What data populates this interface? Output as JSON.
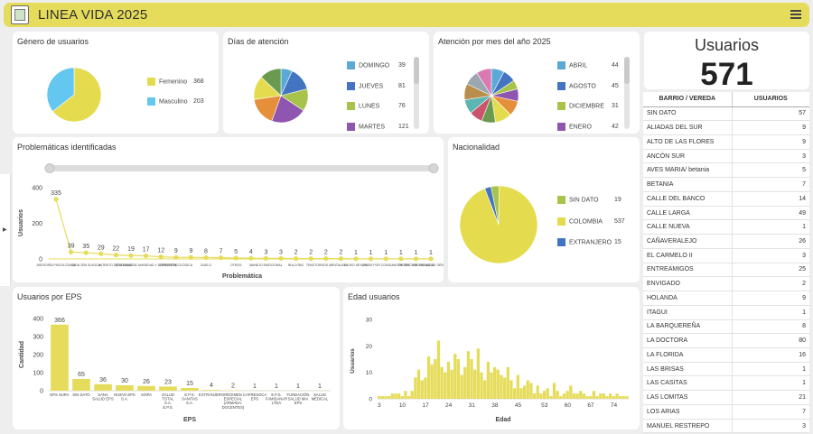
{
  "app": {
    "title": "LINEA VIDA 2025"
  },
  "colors": {
    "accent": "#e6dc5c",
    "bar": "#e6dc5c",
    "panel": "#ffffff"
  },
  "gender": {
    "title": "Género de usuarios",
    "items": [
      {
        "label": "Femenino",
        "value": 368,
        "color": "#e4dc4e"
      },
      {
        "label": "Masculino",
        "value": 203,
        "color": "#64c7ef"
      }
    ]
  },
  "days": {
    "title": "Días de atención",
    "legend": [
      {
        "label": "DOMINGO",
        "value": 39,
        "color": "#5aa9d6"
      },
      {
        "label": "JUEVES",
        "value": 81,
        "color": "#4274c2"
      },
      {
        "label": "LUNES",
        "value": 76,
        "color": "#a8c349"
      },
      {
        "label": "MARTES",
        "value": 121,
        "color": "#8e56b0"
      }
    ]
  },
  "months": {
    "title": "Atención por mes del año 2025",
    "legend": [
      {
        "label": "ABRIL",
        "value": 44,
        "color": "#5aa9d6"
      },
      {
        "label": "AGOSTO",
        "value": 45,
        "color": "#4274c2"
      },
      {
        "label": "DICIEMBRE",
        "value": 31,
        "color": "#a8c349"
      },
      {
        "label": "ENERO",
        "value": 42,
        "color": "#8e56b0"
      }
    ]
  },
  "problems": {
    "title": "Problemáticas identificadas",
    "xlabel": "Problemática",
    "ylabel": "Usuarios"
  },
  "nationality": {
    "title": "Nacionalidad",
    "items": [
      {
        "label": "SIN DATO",
        "value": 19,
        "color": "#a8c349"
      },
      {
        "label": "COLOMBIA",
        "value": 537,
        "color": "#e4dc4e"
      },
      {
        "label": "EXTRANJERO",
        "value": 15,
        "color": "#4274c2"
      }
    ]
  },
  "eps": {
    "title": "Usuarios por EPS",
    "xlabel": "EPS",
    "ylabel": "Cantidad"
  },
  "age": {
    "title": "Edad usuarios",
    "xlabel": "Edad",
    "ylabel": "Usuarios"
  },
  "stat": {
    "label": "Usuarios",
    "value": "571"
  },
  "table": {
    "headers": [
      "BARRIO / VEREDA",
      "USUARIOS"
    ],
    "rows": [
      [
        "SIN DATO",
        "57"
      ],
      [
        "ALIADAS DEL SUR",
        "9"
      ],
      [
        "ALTO DE LAS FLORES",
        "9"
      ],
      [
        "ANCÓN SUR",
        "3"
      ],
      [
        "AVES MARIA/ betania",
        "5"
      ],
      [
        "BETANIA",
        "7"
      ],
      [
        "CALLE DEL BANCO",
        "14"
      ],
      [
        "CALLE LARGA",
        "49"
      ],
      [
        "CALLE NUEVA",
        "1"
      ],
      [
        "CAÑAVERALEJO",
        "26"
      ],
      [
        "EL CARMELO II",
        "3"
      ],
      [
        "ENTREAMIGOS",
        "25"
      ],
      [
        "ENVIGADO",
        "2"
      ],
      [
        "HOLANDA",
        "9"
      ],
      [
        "ITAGUI",
        "1"
      ],
      [
        "LA BARQUEREÑA",
        "8"
      ],
      [
        "LA DOCTORA",
        "80"
      ],
      [
        "LA FLORIDA",
        "16"
      ],
      [
        "LAS BRISAS",
        "1"
      ],
      [
        "LAS CASITAS",
        "1"
      ],
      [
        "LAS LOMITAS",
        "21"
      ],
      [
        "LOS ARIAS",
        "7"
      ],
      [
        "MANUEL RESTREPO",
        "3"
      ]
    ]
  },
  "chart_data": [
    {
      "type": "pie",
      "title": "Género de usuarios",
      "categories": [
        "Femenino",
        "Masculino"
      ],
      "values": [
        368,
        203
      ]
    },
    {
      "type": "pie",
      "title": "Días de atención",
      "categories": [
        "DOMINGO",
        "JUEVES",
        "LUNES",
        "MARTES",
        "",
        "",
        ""
      ],
      "values": [
        39,
        81,
        76,
        121,
        98,
        82,
        74
      ],
      "colors": [
        "#5aa9d6",
        "#4274c2",
        "#a8c349",
        "#8e56b0",
        "#e58f3a",
        "#e4dc4e",
        "#6a9a4f"
      ]
    },
    {
      "type": "pie",
      "title": "Atención por mes del año 2025",
      "categories": [
        "ABRIL",
        "AGOSTO",
        "DICIEMBRE",
        "ENERO",
        "",
        "",
        "",
        "",
        "",
        "",
        "",
        ""
      ],
      "values": [
        44,
        45,
        31,
        42,
        52,
        58,
        47,
        46,
        49,
        55,
        50,
        52
      ],
      "colors": [
        "#5aa9d6",
        "#4274c2",
        "#a8c349",
        "#8e56b0",
        "#e58f3a",
        "#e4dc4e",
        "#6a9a4f",
        "#c9546b",
        "#5bb5b0",
        "#b98e4a",
        "#9aa6b2",
        "#d97bb2"
      ]
    },
    {
      "type": "line",
      "title": "Problemáticas identificadas",
      "xlabel": "Problemática",
      "ylabel": "Usuarios",
      "ylim": [
        0,
        400
      ],
      "yticks": [
        0,
        200,
        400
      ],
      "categories": [
        "ASESORÍA PSICOLÓGICA",
        "IDEACIÓN SUICIDA",
        "INTENTO DE SUICIDIO",
        "SÍNTOMAS DE ANSIEDAD Y DEPRESIÓN",
        "CRISIS PSICOLÓGICA",
        "DUELO",
        "OTROS",
        "MANEJO EMOCIONAL",
        "BULLYING",
        "TRASTORNOS MENTALES",
        "ABUSO SEXUAL",
        "CRISIS POR CONSUMO DE SPA",
        "PROTECTOR TORNADA",
        "VIOLENCIAS DE GÉNERO",
        "",
        "",
        "",
        "",
        "",
        ""
      ],
      "values": [
        335,
        39,
        35,
        29,
        22,
        19,
        17,
        12,
        9,
        9,
        8,
        7,
        5,
        4,
        3,
        3,
        2,
        2,
        2,
        2
      ],
      "values2": [
        1,
        1,
        1,
        1,
        1,
        1
      ]
    },
    {
      "type": "pie",
      "title": "Nacionalidad",
      "categories": [
        "SIN DATO",
        "COLOMBIA",
        "EXTRANJERO"
      ],
      "values": [
        19,
        537,
        15
      ]
    },
    {
      "type": "bar",
      "title": "Usuarios por EPS",
      "xlabel": "EPS",
      "ylabel": "Cantidad",
      "ylim": [
        0,
        400
      ],
      "yticks": [
        0,
        100,
        200,
        300,
        400
      ],
      "categories": [
        "EPS SURA",
        "SIN DATO",
        "SANA SALUD EPS",
        "NUEVA EPS S.A.",
        "SISPA",
        "SALUD TOTAL S.A. E.P.S.",
        "E.P.S. SANITAS S.A.",
        "EXTRANJERO",
        "RÉGIMEN ESPECIAL (ARMADA, DOCENTES)",
        "CAPRESOCA EPS",
        "E.P.S. FAMISANAR LTDA",
        "FUNDACIÓN SALUD MIA EPS",
        "SALUD MÉDICAL"
      ],
      "values": [
        366,
        65,
        36,
        30,
        26,
        23,
        15,
        4,
        2,
        1,
        1,
        1,
        1
      ]
    },
    {
      "type": "bar",
      "title": "Edad usuarios",
      "xlabel": "Edad",
      "ylabel": "Usuarios",
      "ylim": [
        0,
        30
      ],
      "yticks": [
        0,
        10,
        20,
        30
      ],
      "xticks": [
        3,
        10,
        17,
        24,
        31,
        38,
        45,
        53,
        60,
        67,
        74
      ],
      "x": [
        3,
        4,
        5,
        6,
        7,
        8,
        9,
        10,
        11,
        12,
        13,
        14,
        15,
        16,
        17,
        18,
        19,
        20,
        21,
        22,
        23,
        24,
        25,
        26,
        27,
        28,
        29,
        30,
        31,
        32,
        33,
        34,
        35,
        36,
        37,
        38,
        39,
        40,
        41,
        42,
        43,
        44,
        45,
        46,
        47,
        48,
        49,
        50,
        51,
        52,
        53,
        54,
        55,
        56,
        57,
        58,
        59,
        60,
        61,
        62,
        63,
        64,
        65,
        66,
        67,
        68,
        69,
        70,
        71,
        72,
        73,
        74,
        75,
        76,
        77,
        78
      ],
      "values": [
        1,
        1,
        1,
        1,
        2,
        2,
        2,
        1,
        3,
        1,
        3,
        8,
        11,
        7,
        8,
        16,
        13,
        15,
        22,
        12,
        10,
        14,
        11,
        17,
        15,
        9,
        12,
        18,
        15,
        11,
        19,
        10,
        7,
        14,
        10,
        12,
        11,
        9,
        8,
        12,
        7,
        4,
        9,
        4,
        5,
        7,
        6,
        2,
        5,
        2,
        3,
        4,
        1,
        6,
        3,
        1,
        2,
        3,
        5,
        2,
        2,
        3,
        2,
        1,
        1,
        3,
        1,
        2,
        2,
        1,
        2,
        1,
        2,
        1,
        1,
        1
      ]
    }
  ]
}
